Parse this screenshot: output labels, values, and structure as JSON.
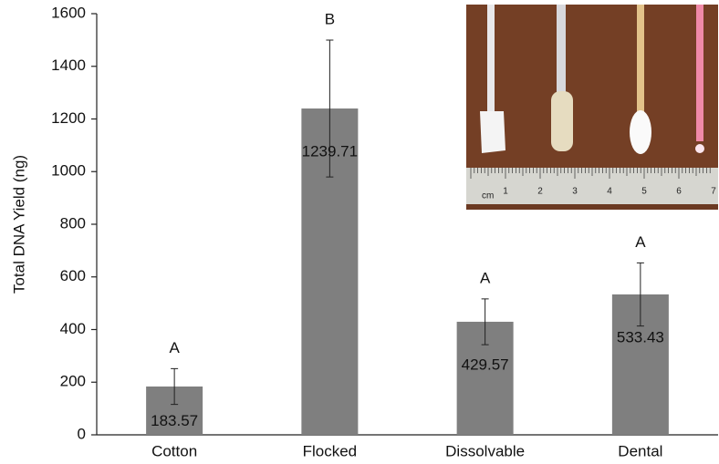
{
  "chart_data": {
    "type": "bar",
    "y_label": "Total DNA Yield (ng)",
    "categories": [
      "Cotton",
      "Flocked",
      "Dissolvable",
      "Dental"
    ],
    "values": [
      183.57,
      1239.71,
      429.57,
      533.43
    ],
    "errors": [
      68,
      260,
      87,
      120
    ],
    "significance": [
      "A",
      "B",
      "A",
      "A"
    ],
    "color": "#7f7f7f",
    "ylim": [
      0,
      1600
    ],
    "yticks": [
      0,
      200,
      400,
      600,
      800,
      1000,
      1200,
      1400,
      1600
    ],
    "grid": false
  },
  "photo": {
    "ruler_unit": "cm",
    "ruler_labels": [
      "1",
      "2",
      "3",
      "4",
      "5",
      "6",
      "7"
    ]
  }
}
